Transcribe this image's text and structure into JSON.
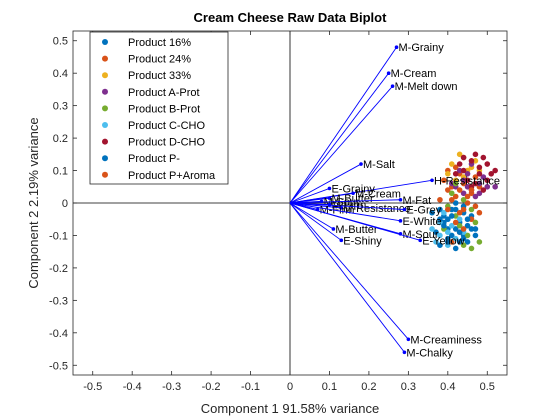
{
  "chart_data": {
    "type": "scatter",
    "title": "Cream Cheese Raw Data Biplot",
    "xlabel": "Component 1 91.58% variance",
    "ylabel": "Component 2 2.19% variance",
    "xlim": [
      -0.55,
      0.55
    ],
    "ylim": [
      -0.53,
      0.53
    ],
    "xticks": [
      -0.5,
      -0.4,
      -0.3,
      -0.2,
      -0.1,
      0,
      0.1,
      0.2,
      0.3,
      0.4,
      0.5
    ],
    "xtick_labels": [
      "-0.5",
      "-0.4",
      "-0.3",
      "-0.2",
      "-0.1",
      "0",
      "0.1",
      "0.2",
      "0.3",
      "0.4",
      "0.5"
    ],
    "yticks": [
      -0.5,
      -0.4,
      -0.3,
      -0.2,
      -0.1,
      0,
      0.1,
      0.2,
      0.3,
      0.4,
      0.5
    ],
    "ytick_labels": [
      "-0.5",
      "-0.4",
      "-0.3",
      "-0.2",
      "-0.1",
      "0",
      "0.1",
      "0.2",
      "0.3",
      "0.4",
      "0.5"
    ],
    "grid": false,
    "legend_position": "top-left",
    "vector_color": "#0000ff",
    "vectors": [
      {
        "label": "M-Grainy",
        "x": 0.27,
        "y": 0.48
      },
      {
        "label": "M-Cream",
        "x": 0.25,
        "y": 0.4
      },
      {
        "label": "M-Melt down",
        "x": 0.26,
        "y": 0.36
      },
      {
        "label": "M-Salt",
        "x": 0.18,
        "y": 0.12
      },
      {
        "label": "H-Resistance",
        "x": 0.36,
        "y": 0.07
      },
      {
        "label": "E-Grainy",
        "x": 0.1,
        "y": 0.045
      },
      {
        "label": "M-Cream",
        "x": 0.16,
        "y": 0.03
      },
      {
        "label": "M-Butter",
        "x": 0.1,
        "y": 0.015
      },
      {
        "label": "M-Sour",
        "x": 0.08,
        "y": 0.005
      },
      {
        "label": "M-Firm",
        "x": 0.1,
        "y": -0.005
      },
      {
        "label": "M-Resistance",
        "x": 0.13,
        "y": -0.015
      },
      {
        "label": "M-Fat",
        "x": 0.28,
        "y": 0.01
      },
      {
        "label": "E-Grey",
        "x": 0.29,
        "y": -0.02
      },
      {
        "label": "M-Firm",
        "x": 0.07,
        "y": -0.02
      },
      {
        "label": "E-White",
        "x": 0.28,
        "y": -0.055
      },
      {
        "label": "M-Butter",
        "x": 0.11,
        "y": -0.08
      },
      {
        "label": "M-Sour",
        "x": 0.28,
        "y": -0.095
      },
      {
        "label": "E-Shiny",
        "x": 0.13,
        "y": -0.115
      },
      {
        "label": "E-Yellow",
        "x": 0.33,
        "y": -0.115
      },
      {
        "label": "M-Creaminess",
        "x": 0.3,
        "y": -0.42
      },
      {
        "label": "M-Chalky",
        "x": 0.29,
        "y": -0.46
      }
    ],
    "series": [
      {
        "name": "Product 16%",
        "color": "#0072bd",
        "points": [
          [
            0.38,
            -0.02
          ],
          [
            0.4,
            -0.05
          ],
          [
            0.42,
            -0.08
          ],
          [
            0.44,
            -0.03
          ],
          [
            0.41,
            -0.1
          ],
          [
            0.39,
            -0.06
          ],
          [
            0.43,
            -0.12
          ],
          [
            0.45,
            -0.07
          ],
          [
            0.37,
            -0.09
          ],
          [
            0.42,
            0.0
          ],
          [
            0.46,
            -0.04
          ],
          [
            0.4,
            -0.11
          ],
          [
            0.44,
            -0.1
          ],
          [
            0.38,
            -0.13
          ],
          [
            0.43,
            -0.06
          ],
          [
            0.41,
            -0.02
          ],
          [
            0.47,
            -0.08
          ],
          [
            0.39,
            -0.04
          ],
          [
            0.45,
            -0.12
          ],
          [
            0.42,
            -0.14
          ],
          [
            0.36,
            -0.03
          ],
          [
            0.44,
            -0.01
          ],
          [
            0.4,
            -0.08
          ]
        ]
      },
      {
        "name": "Product 24%",
        "color": "#d95319",
        "points": [
          [
            0.4,
            0.04
          ],
          [
            0.42,
            0.02
          ],
          [
            0.44,
            0.06
          ],
          [
            0.46,
            0.03
          ],
          [
            0.39,
            0.07
          ],
          [
            0.43,
            0.09
          ],
          [
            0.45,
            0.0
          ],
          [
            0.41,
            0.05
          ],
          [
            0.47,
            0.08
          ],
          [
            0.38,
            0.01
          ],
          [
            0.44,
            -0.02
          ],
          [
            0.42,
            0.11
          ],
          [
            0.48,
            0.05
          ],
          [
            0.4,
            0.1
          ],
          [
            0.46,
            -0.05
          ],
          [
            0.43,
            -0.09
          ],
          [
            0.41,
            -0.12
          ]
        ]
      },
      {
        "name": "Product 33%",
        "color": "#edb120",
        "points": [
          [
            0.41,
            0.12
          ],
          [
            0.43,
            0.15
          ],
          [
            0.45,
            0.1
          ],
          [
            0.47,
            0.13
          ],
          [
            0.44,
            0.08
          ],
          [
            0.42,
            0.07
          ],
          [
            0.46,
            0.11
          ],
          [
            0.4,
            0.09
          ],
          [
            0.48,
            0.1
          ],
          [
            0.44,
            0.14
          ]
        ]
      },
      {
        "name": "Product A-Prot",
        "color": "#7e2f8e",
        "points": [
          [
            0.42,
            0.05
          ],
          [
            0.44,
            0.07
          ],
          [
            0.46,
            0.04
          ],
          [
            0.48,
            0.06
          ],
          [
            0.45,
            0.09
          ],
          [
            0.43,
            0.1
          ],
          [
            0.47,
            0.02
          ],
          [
            0.49,
            0.08
          ],
          [
            0.41,
            0.06
          ],
          [
            0.5,
            0.05
          ],
          [
            0.46,
            0.12
          ],
          [
            0.44,
            0.03
          ],
          [
            0.52,
            0.05
          ],
          [
            0.48,
            0.03
          ],
          [
            0.45,
            0.05
          ]
        ]
      },
      {
        "name": "Product B-Prot",
        "color": "#77ac30",
        "points": [
          [
            0.4,
            -0.01
          ],
          [
            0.42,
            -0.04
          ],
          [
            0.44,
            0.01
          ],
          [
            0.46,
            -0.02
          ],
          [
            0.43,
            -0.07
          ],
          [
            0.45,
            -0.1
          ],
          [
            0.41,
            0.03
          ],
          [
            0.47,
            -0.06
          ],
          [
            0.39,
            -0.08
          ],
          [
            0.48,
            -0.12
          ],
          [
            0.44,
            -0.13
          ],
          [
            0.42,
            0.06
          ],
          [
            0.46,
            -0.14
          ]
        ]
      },
      {
        "name": "Product C-CHO",
        "color": "#4dbeee",
        "points": [
          [
            0.38,
            -0.06
          ],
          [
            0.4,
            -0.09
          ],
          [
            0.42,
            -0.11
          ],
          [
            0.37,
            -0.12
          ],
          [
            0.39,
            -0.03
          ],
          [
            0.41,
            -0.07
          ],
          [
            0.43,
            -0.05
          ],
          [
            0.36,
            -0.08
          ],
          [
            0.44,
            -0.09
          ],
          [
            0.4,
            -0.13
          ],
          [
            0.38,
            -0.1
          ]
        ]
      },
      {
        "name": "Product D-CHO",
        "color": "#a2142f",
        "points": [
          [
            0.44,
            0.1
          ],
          [
            0.46,
            0.13
          ],
          [
            0.48,
            0.09
          ],
          [
            0.5,
            0.12
          ],
          [
            0.47,
            0.15
          ],
          [
            0.45,
            0.07
          ],
          [
            0.49,
            0.14
          ],
          [
            0.43,
            0.12
          ],
          [
            0.51,
            0.09
          ],
          [
            0.48,
            0.11
          ],
          [
            0.46,
            0.05
          ],
          [
            0.42,
            0.09
          ],
          [
            0.5,
            0.07
          ],
          [
            0.47,
            0.06
          ],
          [
            0.44,
            0.14
          ],
          [
            0.49,
            0.04
          ],
          [
            0.52,
            0.1
          ]
        ]
      },
      {
        "name": "Product P-",
        "color": "#0072bd",
        "points": [
          [
            0.39,
            -0.07
          ],
          [
            0.41,
            -0.04
          ],
          [
            0.43,
            -0.09
          ],
          [
            0.45,
            -0.05
          ],
          [
            0.4,
            -0.12
          ],
          [
            0.42,
            -0.02
          ],
          [
            0.44,
            -0.11
          ],
          [
            0.46,
            -0.08
          ],
          [
            0.38,
            -0.05
          ],
          [
            0.47,
            -0.1
          ]
        ]
      },
      {
        "name": "Product P+Aroma",
        "color": "#d95319",
        "points": [
          [
            0.41,
            0.01
          ],
          [
            0.43,
            -0.03
          ],
          [
            0.45,
            0.02
          ],
          [
            0.47,
            -0.01
          ],
          [
            0.42,
            -0.06
          ],
          [
            0.44,
            -0.08
          ],
          [
            0.46,
            0.04
          ],
          [
            0.4,
            -0.02
          ],
          [
            0.48,
            -0.03
          ],
          [
            0.43,
            0.04
          ]
        ]
      }
    ]
  }
}
